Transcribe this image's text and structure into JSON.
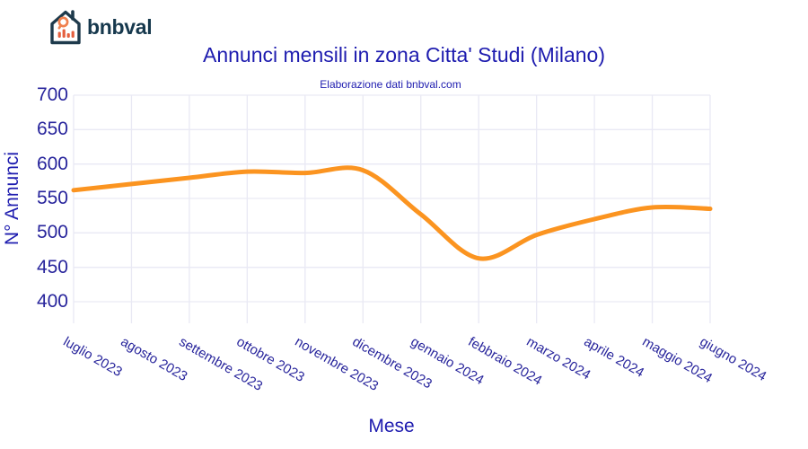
{
  "brand": {
    "name": "bnbval",
    "logo_navy": "#1e3a4c",
    "logo_orange": "#f0814f",
    "logo_red": "#e55f3e"
  },
  "chart_data": {
    "type": "line",
    "title": "Annunci mensili in zona Citta' Studi (Milano)",
    "subtitle": "Elaborazione dati bnbval.com",
    "xlabel": "Mese",
    "ylabel": "N° Annunci",
    "categories": [
      "luglio 2023",
      "agosto 2023",
      "settembre 2023",
      "ottobre 2023",
      "novembre 2023",
      "dicembre 2023",
      "gennaio 2024",
      "febbraio 2024",
      "marzo 2024",
      "aprile 2024",
      "maggio 2024",
      "giugno 2024"
    ],
    "values": [
      562,
      571,
      580,
      589,
      587,
      591,
      527,
      463,
      497,
      520,
      537,
      535
    ],
    "ylim": [
      400,
      700
    ],
    "yticks": [
      700,
      650,
      600,
      550,
      500,
      450,
      400
    ],
    "x_tick_angle_deg": 30,
    "grid": true,
    "legend": "none",
    "line_shape": "spline",
    "line_color": "#fb9420",
    "line_width": 5,
    "gridline_color": "#e9e9f4",
    "title_color": "#1e1caf",
    "tick_color": "#28259c",
    "background": "#ffffff"
  }
}
